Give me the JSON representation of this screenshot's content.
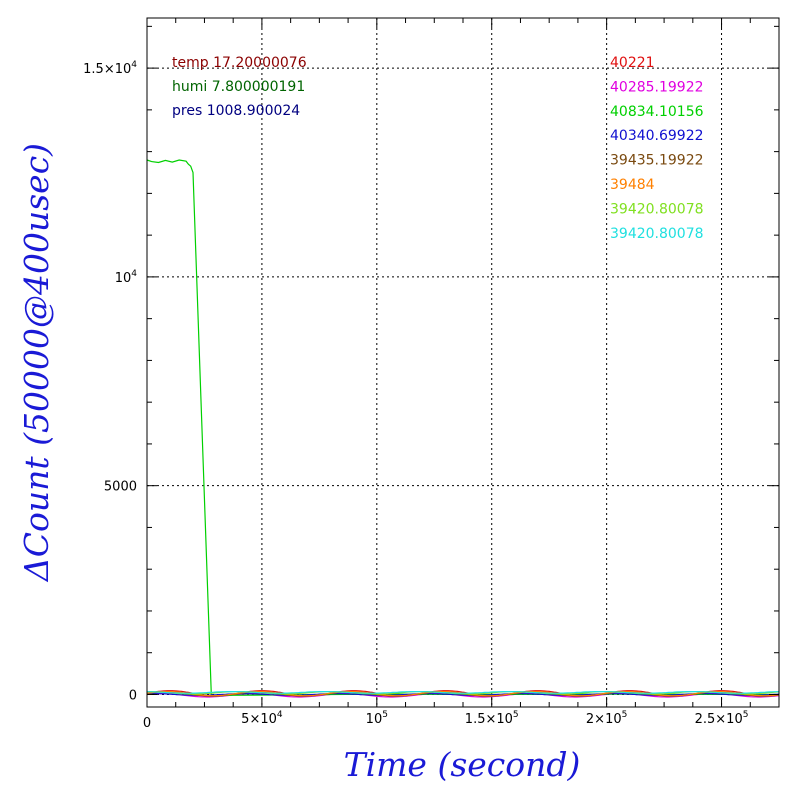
{
  "chart_data": {
    "type": "line",
    "title": "",
    "xlabel": "Time (second)",
    "ylabel": "ΔCount (50000@400usec)",
    "xlim": [
      0,
      275000
    ],
    "ylim": [
      -300,
      16200
    ],
    "grid": true,
    "x_ticks": [
      {
        "value": 0,
        "base": "0",
        "sup": ""
      },
      {
        "value": 50000,
        "base": "5×10",
        "sup": "4"
      },
      {
        "value": 100000,
        "base": "10",
        "sup": "5"
      },
      {
        "value": 150000,
        "base": "1.5×10",
        "sup": "5"
      },
      {
        "value": 200000,
        "base": "2×10",
        "sup": "5"
      },
      {
        "value": 250000,
        "base": "2.5×10",
        "sup": "5"
      }
    ],
    "y_ticks": [
      {
        "value": 0,
        "base": "0",
        "sup": ""
      },
      {
        "value": 5000,
        "base": "5000",
        "sup": ""
      },
      {
        "value": 10000,
        "base": "10",
        "sup": "4"
      },
      {
        "value": 15000,
        "base": "1.5×10",
        "sup": "4"
      }
    ],
    "env_legend": [
      {
        "text": "temp 17.20000076",
        "color": "#8b0000"
      },
      {
        "text": "humi 7.800000191",
        "color": "#006400"
      },
      {
        "text": "pres 1008.900024",
        "color": "#000080"
      }
    ],
    "series": [
      {
        "name": "40221",
        "color": "#e01010",
        "kind": "wave",
        "offset": 30,
        "amp": 60,
        "phase": 0.0
      },
      {
        "name": "40285.19922",
        "color": "#e000e0",
        "kind": "wave",
        "offset": -20,
        "amp": 40,
        "phase": 0.6
      },
      {
        "name": "40834.10156",
        "color": "#00d000",
        "kind": "points",
        "x": [
          0,
          2000,
          5000,
          8000,
          11000,
          14000,
          17000,
          18000,
          19000,
          20000,
          28000,
          30000,
          35000,
          60000,
          100000,
          150000,
          200000,
          275000
        ],
        "y": [
          12800,
          12760,
          12740,
          12790,
          12750,
          12800,
          12770,
          12700,
          12650,
          12500,
          0,
          -40,
          -20,
          -10,
          10,
          0,
          10,
          0
        ]
      },
      {
        "name": "40340.69922",
        "color": "#1010d0",
        "kind": "wave",
        "offset": 0,
        "amp": 20,
        "phase": 1.2
      },
      {
        "name": "39435.19922",
        "color": "#7a4a10",
        "kind": "wave",
        "offset": 10,
        "amp": 50,
        "phase": 0.3
      },
      {
        "name": "39484",
        "color": "#ff8000",
        "kind": "wave",
        "offset": 20,
        "amp": 50,
        "phase": 0.2
      },
      {
        "name": "39420.80078",
        "color": "#80e020",
        "kind": "wave",
        "offset": 40,
        "amp": 30,
        "phase": 1.6
      },
      {
        "name": "39420.80078",
        "color": "#20e0e0",
        "kind": "wave",
        "offset": 50,
        "amp": 20,
        "phase": 2.0
      }
    ]
  }
}
